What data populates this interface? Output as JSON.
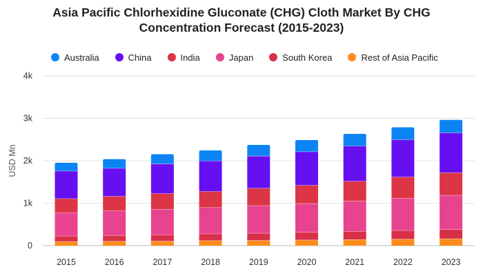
{
  "chart_data": {
    "type": "bar",
    "stacked": true,
    "title_line1": "Asia Pacific Chlorhexidine Gluconate (CHG) Cloth Market By CHG",
    "title_line2": "Concentration Forecast (2015-2023)",
    "ylabel": "USD Mn",
    "xlabel": "",
    "categories": [
      "2015",
      "2016",
      "2017",
      "2018",
      "2019",
      "2020",
      "2021",
      "2022",
      "2023"
    ],
    "ylim": [
      0,
      4000
    ],
    "yticks": [
      0,
      1000,
      2000,
      3000,
      4000
    ],
    "ytick_labels": [
      "0",
      "1k",
      "2k",
      "3k",
      "4k"
    ],
    "grid": true,
    "legend_position": "top-left",
    "series": [
      {
        "name": "Rest of Asia Pacific",
        "color": "#FF8C1A",
        "values": [
          100,
          105,
          110,
          120,
          125,
          135,
          145,
          155,
          165
        ]
      },
      {
        "name": "South Korea",
        "color": "#D9304A",
        "values": [
          130,
          140,
          150,
          160,
          170,
          180,
          195,
          205,
          215
        ]
      },
      {
        "name": "Japan",
        "color": "#E8438E",
        "values": [
          550,
          575,
          600,
          620,
          650,
          680,
          710,
          760,
          810
        ]
      },
      {
        "name": "India",
        "color": "#DC3545",
        "values": [
          330,
          345,
          370,
          380,
          410,
          430,
          470,
          500,
          530
        ]
      },
      {
        "name": "China",
        "color": "#6610F2",
        "values": [
          650,
          660,
          700,
          720,
          760,
          790,
          830,
          880,
          940
        ]
      },
      {
        "name": "Australia",
        "color": "#0D84F5",
        "values": [
          200,
          220,
          230,
          250,
          265,
          280,
          290,
          295,
          310
        ]
      }
    ],
    "legend_order": [
      "Australia",
      "China",
      "India",
      "Japan",
      "South Korea",
      "Rest of Asia Pacific"
    ]
  }
}
